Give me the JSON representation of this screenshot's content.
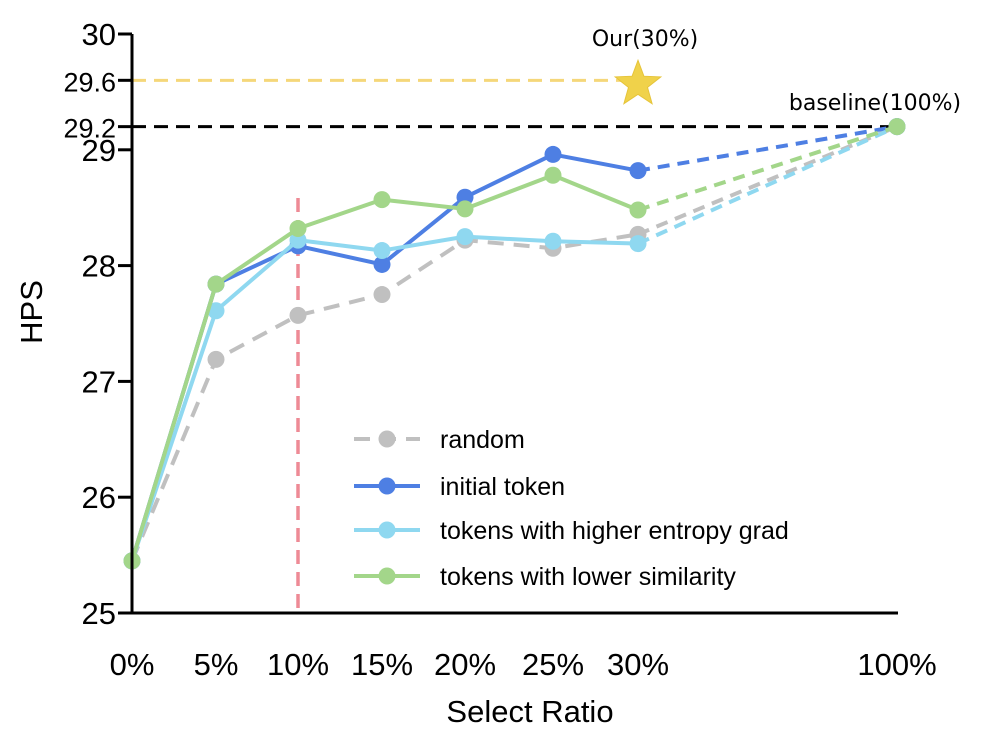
{
  "chart_data": {
    "type": "line",
    "xlabel": "Select Ratio",
    "ylabel": "HPS",
    "categories": [
      "0%",
      "5%",
      "10%",
      "15%",
      "20%",
      "25%",
      "30%",
      "100%"
    ],
    "ylim": [
      25,
      30
    ],
    "yticks": [
      25,
      26,
      27,
      28,
      29,
      29.2,
      29.6,
      30
    ],
    "series": [
      {
        "name": "random",
        "values": [
          25.45,
          27.19,
          27.57,
          27.75,
          28.22,
          28.15,
          28.27,
          29.2
        ],
        "color": "#c0c0c0",
        "style": "dashed"
      },
      {
        "name": "initial token",
        "values": [
          25.45,
          27.84,
          28.17,
          28.01,
          28.59,
          28.96,
          28.82,
          29.2
        ],
        "color": "#4e7fe3",
        "style": "solid"
      },
      {
        "name": "tokens with higher entropy grad",
        "values": [
          25.45,
          27.61,
          28.22,
          28.13,
          28.25,
          28.21,
          28.19,
          29.2
        ],
        "color": "#8fd8f0",
        "style": "solid"
      },
      {
        "name": "tokens with lower similarity",
        "values": [
          25.45,
          27.84,
          28.32,
          28.57,
          28.49,
          28.78,
          28.48,
          29.2
        ],
        "color": "#a3d68a",
        "style": "solid"
      }
    ],
    "reference_lines": [
      {
        "y": 29.6,
        "color": "#f5d77a",
        "style": "dashed"
      },
      {
        "y": 29.2,
        "color": "#000000",
        "style": "dashed"
      }
    ],
    "vertical_line": {
      "x": "10%",
      "color": "#ee8a95",
      "style": "dashed"
    },
    "annotations": [
      {
        "text": "Our(30%)",
        "marker": "star",
        "color": "#f0d24a",
        "x": "30%",
        "y": 29.6
      },
      {
        "text": "baseline(100%)",
        "x": "100%",
        "y": 29.2
      }
    ],
    "legend": {
      "position": "bottom-right"
    },
    "grid": false
  }
}
